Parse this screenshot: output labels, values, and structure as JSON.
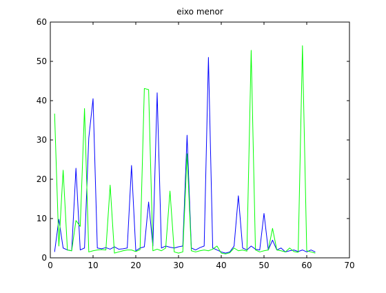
{
  "chart_data": {
    "type": "line",
    "title": "eixo menor",
    "xlabel": "",
    "ylabel": "",
    "xlim": [
      0,
      70
    ],
    "ylim": [
      0,
      60
    ],
    "xticks": [
      0,
      10,
      20,
      30,
      40,
      50,
      60,
      70
    ],
    "yticks": [
      0,
      10,
      20,
      30,
      40,
      50,
      60
    ],
    "grid": false,
    "legend": "none",
    "series": [
      {
        "color": "#0000ff",
        "x": [
          1,
          2,
          3,
          4,
          5,
          6,
          7,
          8,
          9,
          10,
          11,
          12,
          13,
          14,
          15,
          16,
          17,
          18,
          19,
          20,
          21,
          22,
          23,
          24,
          25,
          26,
          27,
          28,
          29,
          30,
          31,
          32,
          33,
          34,
          35,
          36,
          37,
          38,
          39,
          40,
          41,
          42,
          43,
          44,
          45,
          46,
          47,
          48,
          49,
          50,
          51,
          52,
          53,
          54,
          55,
          56,
          57,
          58,
          59,
          60,
          61,
          62
        ],
        "values": [
          1.5,
          9.8,
          2.5,
          2.0,
          1.8,
          22.8,
          2.0,
          2.5,
          30.5,
          40.5,
          2.5,
          2.3,
          2.6,
          2.2,
          2.8,
          2.2,
          2.3,
          2.5,
          23.5,
          1.8,
          2.5,
          2.8,
          14.2,
          3.0,
          42.0,
          2.5,
          3.0,
          2.7,
          2.5,
          2.8,
          3.0,
          31.2,
          2.5,
          2.0,
          2.6,
          3.0,
          51.0,
          2.5,
          2.0,
          1.5,
          1.2,
          1.5,
          3.0,
          15.8,
          2.5,
          2.0,
          3.0,
          2.2,
          2.0,
          11.3,
          2.0,
          4.5,
          2.0,
          2.5,
          1.5,
          1.8,
          2.0,
          1.6,
          2.0,
          1.5,
          2.0,
          1.5
        ]
      },
      {
        "color": "#00ff00",
        "x": [
          1,
          2,
          3,
          4,
          5,
          6,
          7,
          8,
          9,
          10,
          11,
          12,
          13,
          14,
          15,
          16,
          17,
          18,
          19,
          20,
          21,
          22,
          23,
          24,
          25,
          26,
          27,
          28,
          29,
          30,
          31,
          32,
          33,
          34,
          35,
          36,
          37,
          38,
          39,
          40,
          41,
          42,
          43,
          44,
          45,
          46,
          47,
          48,
          49,
          50,
          51,
          52,
          53,
          54,
          55,
          56,
          57,
          58,
          59,
          60,
          61,
          62
        ],
        "values": [
          36.7,
          3.0,
          22.3,
          2.0,
          1.8,
          9.5,
          8.0,
          38.0,
          1.5,
          1.8,
          2.0,
          2.1,
          2.0,
          18.5,
          1.2,
          1.5,
          1.8,
          2.0,
          2.0,
          1.6,
          2.1,
          43.1,
          42.8,
          1.8,
          2.2,
          1.8,
          2.5,
          17.0,
          1.5,
          1.2,
          1.5,
          26.5,
          1.8,
          1.5,
          1.8,
          2.0,
          1.8,
          2.2,
          3.0,
          1.2,
          1.0,
          1.3,
          2.5,
          1.8,
          2.0,
          1.7,
          52.8,
          2.0,
          1.5,
          1.8,
          2.0,
          7.5,
          2.0,
          1.8,
          1.5,
          2.5,
          1.6,
          1.4,
          54.0,
          1.8,
          1.5,
          1.2
        ]
      }
    ]
  }
}
